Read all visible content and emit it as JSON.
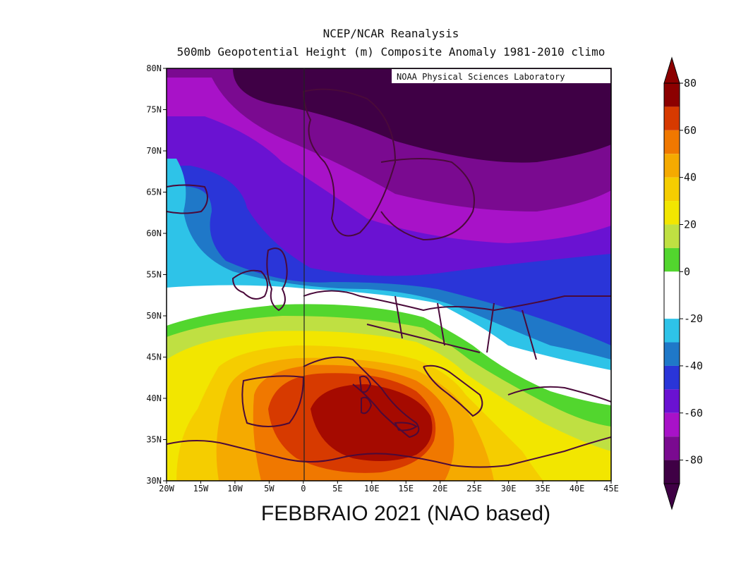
{
  "header": {
    "line1": "NCEP/NCAR Reanalysis",
    "line2": "500mb Geopotential Height (m) Composite Anomaly 1981-2010 climo"
  },
  "map": {
    "credit": "NOAA Physical Sciences Laboratory",
    "lat_labels": [
      "80N",
      "75N",
      "70N",
      "65N",
      "60N",
      "55N",
      "50N",
      "45N",
      "40N",
      "35N",
      "30N"
    ],
    "lon_labels": [
      "20W",
      "15W",
      "10W",
      "5W",
      "0",
      "5E",
      "10E",
      "15E",
      "20E",
      "25E",
      "30E",
      "35E",
      "40E",
      "45E"
    ],
    "extent": {
      "lon": [
        -20,
        45
      ],
      "lat": [
        30,
        80
      ]
    }
  },
  "colorbar": {
    "labels": [
      "80",
      "60",
      "40",
      "20",
      "0",
      "-20",
      "-40",
      "-60",
      "-80"
    ],
    "colors": [
      "#8c0000",
      "#d73a00",
      "#f07800",
      "#f5aa00",
      "#f5cd00",
      "#f2e600",
      "#bfe042",
      "#52d62e",
      "#ffffff",
      "#ffffff",
      "#2ec3e8",
      "#1f78c8",
      "#2a35d8",
      "#6a12d2",
      "#a812c8",
      "#7a0a90",
      "#3f0045"
    ]
  },
  "caption": "FEBBRAIO 2021 (NAO based)"
}
